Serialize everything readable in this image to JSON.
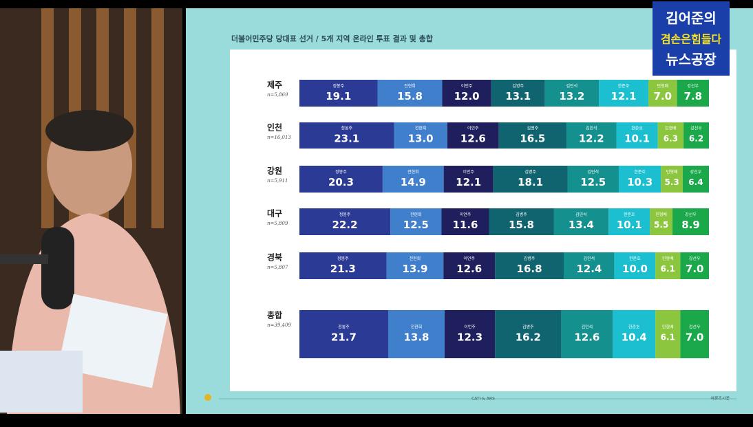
{
  "chart_data": {
    "type": "bar",
    "stacked": true,
    "orientation": "horizontal",
    "title": "더불어민주당 당대표 선거 / 5개 지역 온라인 투표 결과 및 총합",
    "categories": [
      "제주",
      "인천",
      "강원",
      "대구",
      "경북",
      "총합"
    ],
    "sample_sizes": [
      "n=5,869",
      "n=16,013",
      "n=5,911",
      "n=5,809",
      "n=5,807",
      "n=39,409"
    ],
    "series": [
      {
        "name": "정봉주",
        "color": "#2b3a94",
        "values": [
          19.1,
          23.1,
          20.3,
          22.2,
          21.3,
          21.7
        ],
        "value_labels": [
          "19.1",
          "23.1",
          "20.3",
          "22.2",
          "21.3",
          "21.7"
        ]
      },
      {
        "name": "전현희",
        "color": "#3f7fcb",
        "values": [
          15.8,
          13.0,
          14.9,
          12.5,
          13.9,
          13.8
        ],
        "value_labels": [
          "15.8",
          "13.0",
          "14.9",
          "12.5",
          "13.9",
          "13.8"
        ]
      },
      {
        "name": "이언주",
        "color": "#1e1f5c",
        "values": [
          12.0,
          12.6,
          12.1,
          11.6,
          12.6,
          12.3
        ],
        "value_labels": [
          "12.0",
          "12.6",
          "12.1",
          "11.6",
          "12.6",
          "12.3"
        ]
      },
      {
        "name": "김병주",
        "color": "#0f6470",
        "values": [
          13.1,
          16.5,
          18.1,
          15.8,
          16.8,
          16.2
        ],
        "value_labels": [
          "13.1",
          "16.5",
          "18.1",
          "15.8",
          "16.8",
          "16.2"
        ]
      },
      {
        "name": "김민석",
        "color": "#14908f",
        "values": [
          13.2,
          12.2,
          12.5,
          13.4,
          12.4,
          12.6
        ],
        "value_labels": [
          "13.2",
          "12.2",
          "12.5",
          "13.4",
          "12.4",
          "12.6"
        ]
      },
      {
        "name": "한준호",
        "color": "#1bbfd0",
        "values": [
          12.1,
          10.1,
          10.3,
          10.1,
          10.0,
          10.4
        ],
        "value_labels": [
          "12.1",
          "10.1",
          "10.3",
          "10.1",
          "10.0",
          "10.4"
        ]
      },
      {
        "name": "민형배",
        "color": "#8cc63f",
        "values": [
          7.0,
          6.3,
          5.3,
          5.5,
          6.1,
          6.1
        ],
        "value_labels": [
          "7.0",
          "6.3",
          "5.3",
          "5.5",
          "6.1",
          "6.1"
        ]
      },
      {
        "name": "강선우",
        "color": "#1aa84a",
        "values": [
          7.8,
          6.2,
          6.4,
          8.9,
          7.0,
          7.0
        ],
        "value_labels": [
          "7.8",
          "6.2",
          "6.4",
          "8.9",
          "7.0",
          "7.0"
        ]
      }
    ],
    "footer": "CATI & ARS",
    "source": "여론조사꽃",
    "logo": [
      "김어준의",
      "겸손은힘들다",
      "뉴스공장"
    ]
  }
}
